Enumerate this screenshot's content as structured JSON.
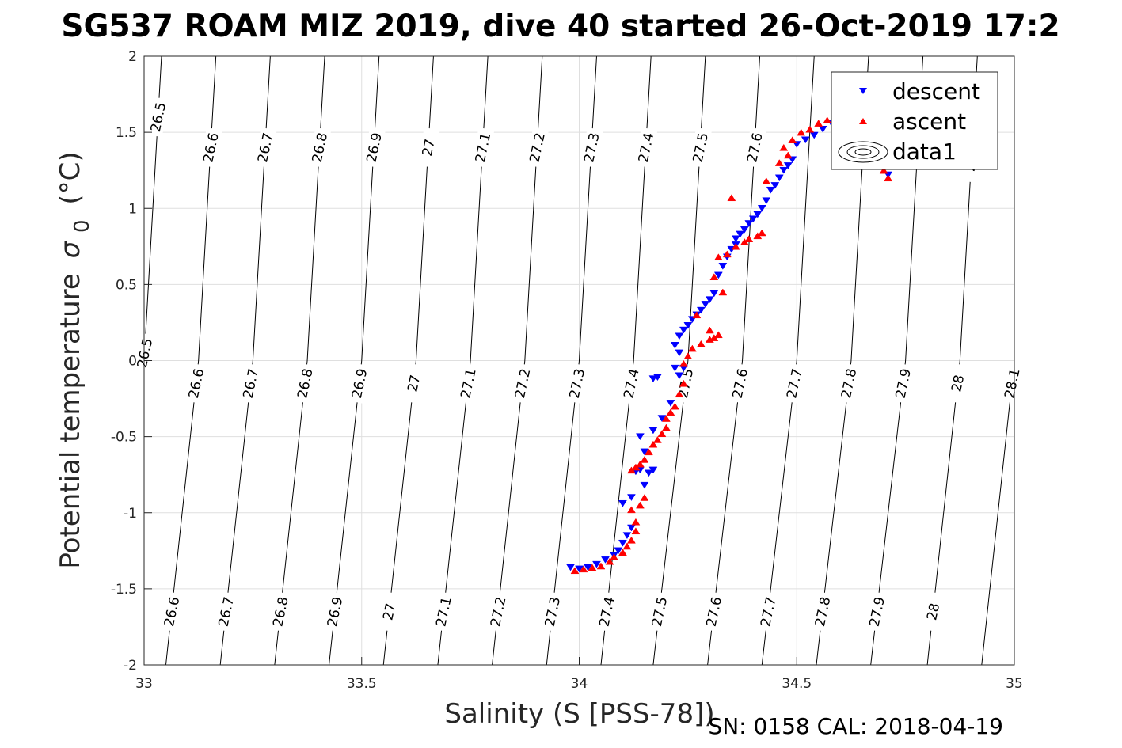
{
  "chart_data": {
    "type": "scatter",
    "title": "SG537 ROAM MIZ 2019, dive 40 started 26-Oct-2019 17:2",
    "xlabel": "Salinity (S [PSS-78])",
    "ylabel": "Potential temperature",
    "ylabel_symbol": "σ",
    "ylabel_subscript": "0",
    "ylabel_unit": "(°C)",
    "xlim": [
      33,
      35
    ],
    "ylim": [
      -2,
      2
    ],
    "xticks": [
      33,
      33.5,
      34,
      34.5,
      35
    ],
    "xtick_labels": [
      "33",
      "33.5",
      "34",
      "34.5",
      "35"
    ],
    "yticks": [
      -2,
      -1.5,
      -1,
      -0.5,
      0,
      0.5,
      1,
      1.5,
      2
    ],
    "ytick_labels": [
      "-2",
      "-1.5",
      "-1",
      "-0.5",
      "0",
      "0.5",
      "1",
      "1.5",
      "2"
    ],
    "grid": true,
    "legend": {
      "position": "top-right",
      "entries": [
        {
          "label": "descent",
          "marker": "triangle-down",
          "color": "#0000ff"
        },
        {
          "label": "ascent",
          "marker": "triangle-up",
          "color": "#ff0000"
        },
        {
          "label": "data1",
          "marker": "contour",
          "color": "#000000"
        }
      ]
    },
    "contours": {
      "name": "sigma0 isopycnals",
      "levels": [
        26.5,
        26.6,
        26.7,
        26.8,
        26.9,
        27.0,
        27.1,
        27.2,
        27.3,
        27.4,
        27.5,
        27.6,
        27.7,
        27.8,
        27.9,
        28.0,
        28.1
      ],
      "level_labels": [
        "26.5",
        "26.6",
        "26.7",
        "26.8",
        "26.9",
        "27",
        "27.1",
        "27.2",
        "27.3",
        "27.4",
        "27.5",
        "27.6",
        "27.7",
        "27.8",
        "27.9",
        "28",
        "28.1"
      ],
      "salinity_at_theta_minus2": [
        32.75,
        33.05,
        33.175,
        33.3,
        33.425,
        33.55,
        33.675,
        33.8,
        33.925,
        34.05,
        34.17,
        34.295,
        34.42,
        34.545,
        34.67,
        34.8,
        34.925
      ],
      "salinity_at_theta_0": [
        33.0,
        33.125,
        33.25,
        33.375,
        33.5,
        33.625,
        33.75,
        33.875,
        34.0,
        34.125,
        34.25,
        34.375,
        34.5,
        34.625,
        34.75,
        34.875,
        35.0
      ],
      "salinity_at_theta_2": [
        33.04,
        33.165,
        33.29,
        33.415,
        33.54,
        33.665,
        33.79,
        33.915,
        34.04,
        34.165,
        34.29,
        34.415,
        34.54,
        34.665,
        34.79,
        34.915,
        35.04
      ],
      "label_rows": [
        {
          "theta": 1.6,
          "labels": [
            "26.5"
          ]
        },
        {
          "theta": 1.4,
          "labels": [
            "26.6",
            "26.7",
            "26.8",
            "26.9",
            "27",
            "27.1",
            "27.2",
            "27.3",
            "27.4",
            "27.5",
            "27.6"
          ]
        },
        {
          "theta": 1.3,
          "labels": [
            "28"
          ]
        },
        {
          "theta": 0.05,
          "labels": [
            "26.5"
          ]
        },
        {
          "theta": -0.15,
          "labels": [
            "26.6",
            "26.7",
            "26.8",
            "26.9",
            "27",
            "27.1",
            "27.2",
            "27.3",
            "27.4",
            "27.5",
            "27.6",
            "27.7",
            "27.8",
            "27.9",
            "28",
            "28.1"
          ]
        },
        {
          "theta": -1.65,
          "labels": [
            "26.6",
            "26.7",
            "26.8",
            "26.9",
            "27",
            "27.1",
            "27.2",
            "27.3",
            "27.4",
            "27.5",
            "27.6",
            "27.7",
            "27.8",
            "27.9",
            "28"
          ]
        }
      ]
    },
    "series": [
      {
        "name": "descent",
        "marker": "triangle-down",
        "color": "#0000ff",
        "points": [
          [
            33.98,
            -1.36
          ],
          [
            34.0,
            -1.37
          ],
          [
            34.02,
            -1.36
          ],
          [
            34.04,
            -1.34
          ],
          [
            34.06,
            -1.31
          ],
          [
            34.08,
            -1.28
          ],
          [
            34.09,
            -1.25
          ],
          [
            34.1,
            -1.2
          ],
          [
            34.11,
            -1.15
          ],
          [
            34.12,
            -1.1
          ],
          [
            34.1,
            -0.94
          ],
          [
            34.12,
            -0.9
          ],
          [
            34.15,
            -0.82
          ],
          [
            34.14,
            -0.72
          ],
          [
            34.16,
            -0.74
          ],
          [
            34.17,
            -0.72
          ],
          [
            34.13,
            -0.73
          ],
          [
            34.15,
            -0.6
          ],
          [
            34.14,
            -0.5
          ],
          [
            34.17,
            -0.46
          ],
          [
            34.19,
            -0.38
          ],
          [
            34.21,
            -0.28
          ],
          [
            34.17,
            -0.12
          ],
          [
            34.18,
            -0.11
          ],
          [
            34.22,
            -0.05
          ],
          [
            34.23,
            -0.1
          ],
          [
            34.24,
            -0.05
          ],
          [
            34.23,
            0.05
          ],
          [
            34.22,
            0.1
          ],
          [
            34.23,
            0.16
          ],
          [
            34.24,
            0.2
          ],
          [
            34.25,
            0.23
          ],
          [
            34.26,
            0.27
          ],
          [
            34.27,
            0.3
          ],
          [
            34.28,
            0.33
          ],
          [
            34.29,
            0.37
          ],
          [
            34.3,
            0.4
          ],
          [
            34.31,
            0.44
          ],
          [
            34.32,
            0.56
          ],
          [
            34.33,
            0.62
          ],
          [
            34.34,
            0.68
          ],
          [
            34.35,
            0.73
          ],
          [
            34.36,
            0.76
          ],
          [
            34.36,
            0.8
          ],
          [
            34.37,
            0.83
          ],
          [
            34.38,
            0.86
          ],
          [
            34.39,
            0.9
          ],
          [
            34.4,
            0.93
          ],
          [
            34.41,
            0.96
          ],
          [
            34.42,
            1.0
          ],
          [
            34.43,
            1.05
          ],
          [
            34.44,
            1.12
          ],
          [
            34.45,
            1.15
          ],
          [
            34.46,
            1.2
          ],
          [
            34.47,
            1.25
          ],
          [
            34.48,
            1.28
          ],
          [
            34.49,
            1.32
          ],
          [
            34.5,
            1.42
          ],
          [
            34.52,
            1.45
          ],
          [
            34.54,
            1.48
          ],
          [
            34.56,
            1.52
          ],
          [
            34.58,
            1.56
          ],
          [
            34.6,
            1.6
          ],
          [
            34.62,
            1.63
          ],
          [
            34.71,
            1.22
          ]
        ]
      },
      {
        "name": "ascent",
        "marker": "triangle-up",
        "color": "#ff0000",
        "points": [
          [
            33.99,
            -1.38
          ],
          [
            34.01,
            -1.37
          ],
          [
            34.03,
            -1.36
          ],
          [
            34.05,
            -1.35
          ],
          [
            34.07,
            -1.32
          ],
          [
            34.08,
            -1.29
          ],
          [
            34.1,
            -1.26
          ],
          [
            34.11,
            -1.22
          ],
          [
            34.12,
            -1.18
          ],
          [
            34.13,
            -1.12
          ],
          [
            34.13,
            -1.06
          ],
          [
            34.12,
            -0.98
          ],
          [
            34.14,
            -0.95
          ],
          [
            34.15,
            -0.9
          ],
          [
            34.12,
            -0.72
          ],
          [
            34.13,
            -0.7
          ],
          [
            34.14,
            -0.68
          ],
          [
            34.15,
            -0.65
          ],
          [
            34.16,
            -0.6
          ],
          [
            34.17,
            -0.55
          ],
          [
            34.18,
            -0.52
          ],
          [
            34.19,
            -0.48
          ],
          [
            34.2,
            -0.44
          ],
          [
            34.2,
            -0.38
          ],
          [
            34.21,
            -0.34
          ],
          [
            34.22,
            -0.3
          ],
          [
            34.23,
            -0.22
          ],
          [
            34.24,
            -0.15
          ],
          [
            34.24,
            -0.02
          ],
          [
            34.25,
            0.03
          ],
          [
            34.26,
            0.08
          ],
          [
            34.28,
            0.11
          ],
          [
            34.3,
            0.14
          ],
          [
            34.31,
            0.15
          ],
          [
            34.32,
            0.17
          ],
          [
            34.3,
            0.2
          ],
          [
            34.27,
            0.3
          ],
          [
            34.33,
            0.45
          ],
          [
            34.31,
            0.55
          ],
          [
            34.32,
            0.68
          ],
          [
            34.34,
            0.7
          ],
          [
            34.36,
            0.75
          ],
          [
            34.38,
            0.78
          ],
          [
            34.39,
            0.8
          ],
          [
            34.41,
            0.82
          ],
          [
            34.42,
            0.84
          ],
          [
            34.35,
            1.07
          ],
          [
            34.43,
            1.18
          ],
          [
            34.46,
            1.3
          ],
          [
            34.48,
            1.35
          ],
          [
            34.47,
            1.4
          ],
          [
            34.49,
            1.45
          ],
          [
            34.51,
            1.5
          ],
          [
            34.53,
            1.52
          ],
          [
            34.55,
            1.56
          ],
          [
            34.57,
            1.58
          ],
          [
            34.59,
            1.62
          ],
          [
            34.61,
            1.65
          ],
          [
            34.7,
            1.25
          ],
          [
            34.71,
            1.2
          ]
        ]
      }
    ],
    "footer": "SN: 0158  CAL: 2018-04-19"
  }
}
